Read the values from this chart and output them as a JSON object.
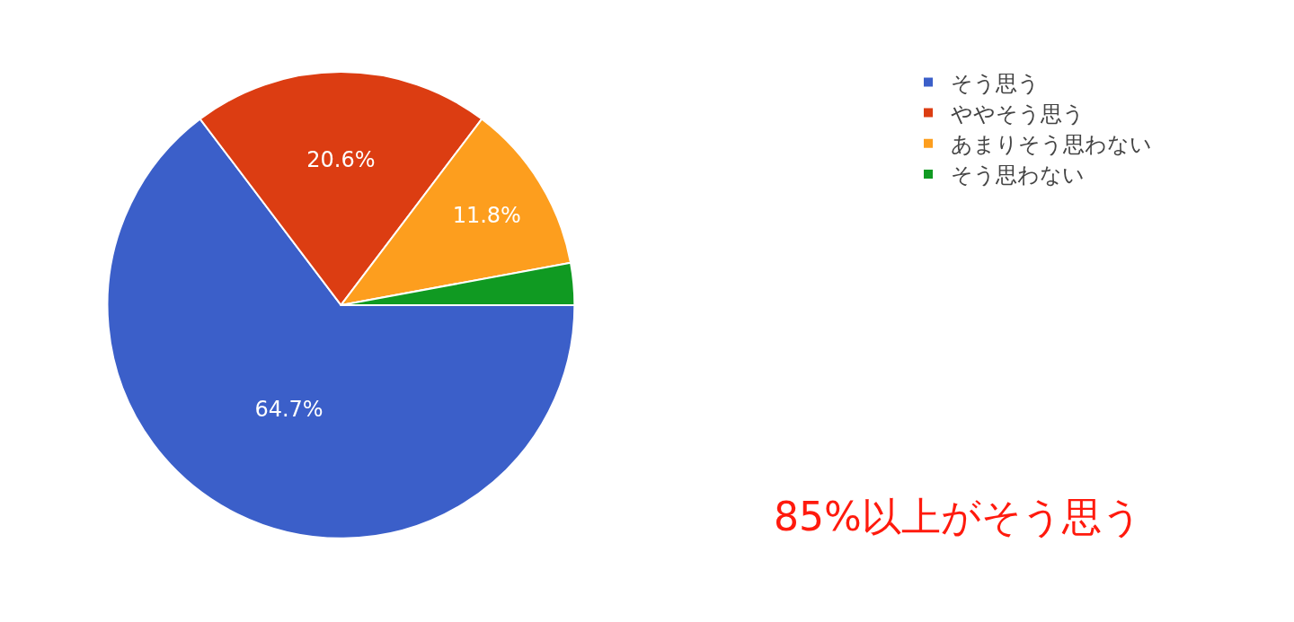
{
  "chart_data": {
    "type": "pie",
    "categories": [
      "そう思う",
      "ややそう思う",
      "あまりそう思わない",
      "そう思わない"
    ],
    "values": [
      64.7,
      20.6,
      11.8,
      2.9
    ],
    "colors": [
      "#3b5fc9",
      "#dc3d12",
      "#fd9e1e",
      "#109a22"
    ],
    "value_labels": [
      "64.7%",
      "20.6%",
      "11.8%",
      null
    ],
    "legend": "top right",
    "annotations": [
      "85%以上がそう思う"
    ]
  }
}
